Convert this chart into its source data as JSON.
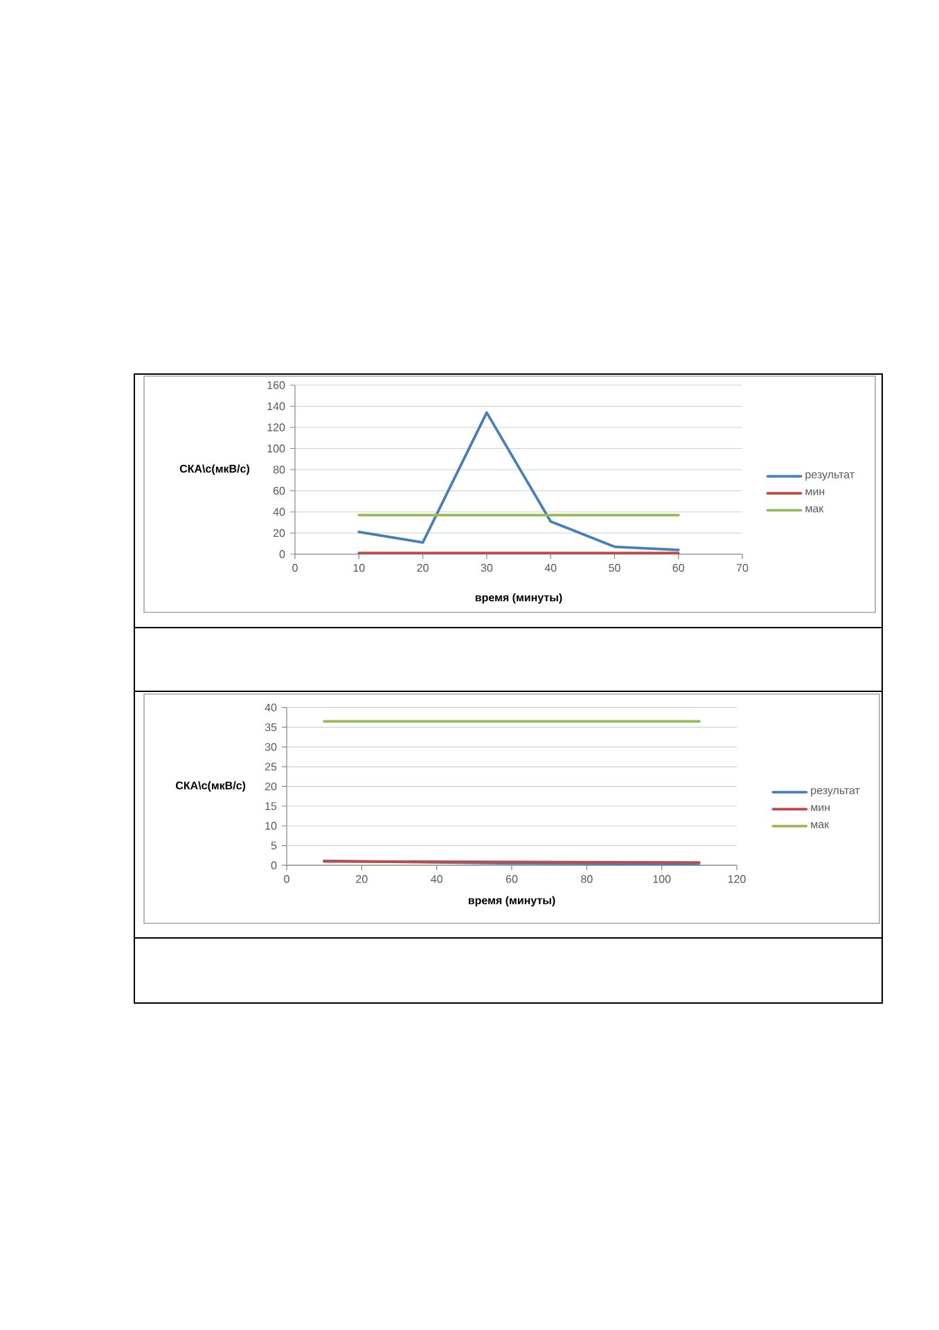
{
  "chart_data": [
    {
      "type": "line",
      "xlabel": "время (минуты)",
      "ylabel": "СКА\\с(мкВ/с)",
      "xlim": [
        0,
        70
      ],
      "ylim": [
        0,
        160
      ],
      "xticks": [
        0,
        10,
        20,
        30,
        40,
        50,
        60,
        70
      ],
      "yticks": [
        0,
        20,
        40,
        60,
        80,
        100,
        120,
        140,
        160
      ],
      "grid": "y",
      "legend": "right",
      "series": [
        {
          "name": "результат",
          "color": "#4a7ebb",
          "x": [
            10,
            20,
            30,
            40,
            50,
            60
          ],
          "values": [
            21,
            11,
            134,
            31,
            7,
            4
          ]
        },
        {
          "name": "мин",
          "color": "#be4b48",
          "x": [
            10,
            20,
            30,
            40,
            50,
            60
          ],
          "values": [
            1,
            1,
            1,
            1,
            1,
            1
          ]
        },
        {
          "name": "мак",
          "color": "#98b954",
          "x": [
            10,
            20,
            30,
            40,
            50,
            60
          ],
          "values": [
            37,
            37,
            37,
            37,
            37,
            37
          ]
        }
      ]
    },
    {
      "type": "line",
      "xlabel": "время (минуты)",
      "ylabel": "СКА\\с(мкВ/с)",
      "xlim": [
        0,
        120
      ],
      "ylim": [
        0,
        40
      ],
      "xticks": [
        0,
        20,
        40,
        60,
        80,
        100,
        120
      ],
      "yticks": [
        0,
        5,
        10,
        15,
        20,
        25,
        30,
        35,
        40
      ],
      "grid": "y",
      "legend": "right",
      "series": [
        {
          "name": "результат",
          "color": "#4a7ebb",
          "x": [
            10,
            60,
            100,
            110
          ],
          "values": [
            1.1,
            0.5,
            0.3,
            0.0
          ]
        },
        {
          "name": "мин",
          "color": "#be4b48",
          "x": [
            10,
            110
          ],
          "values": [
            1.0,
            0.7
          ]
        },
        {
          "name": "мак",
          "color": "#98b954",
          "x": [
            10,
            110
          ],
          "values": [
            36.5,
            36.5
          ]
        }
      ]
    }
  ]
}
